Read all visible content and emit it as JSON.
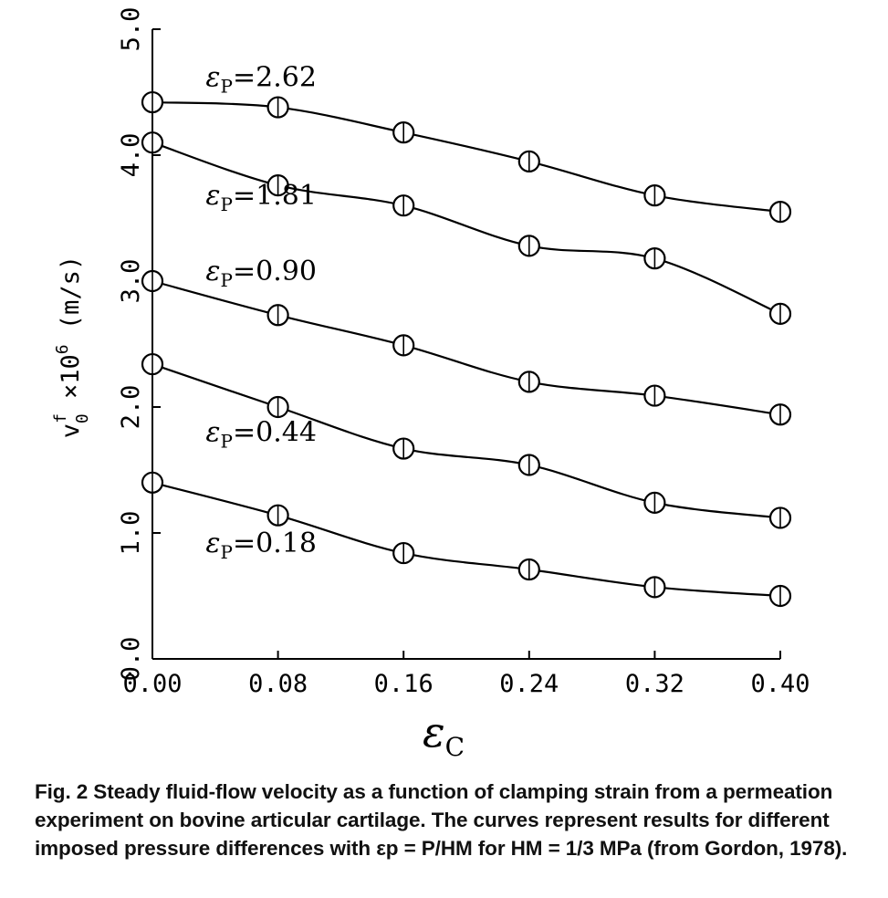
{
  "chart_data": {
    "type": "line",
    "x": [
      0.0,
      0.08,
      0.16,
      0.24,
      0.32,
      0.4
    ],
    "x_tick_labels": [
      "0.00",
      "0.08",
      "0.16",
      "0.24",
      "0.32",
      "0.40"
    ],
    "y_tick_values": [
      0,
      1,
      2,
      3,
      4,
      5
    ],
    "y_tick_labels": [
      "0.0",
      "1.0",
      "2.0",
      "3.0",
      "4.0",
      "5.0"
    ],
    "xlim": [
      0,
      0.4
    ],
    "ylim": [
      0,
      5.0
    ],
    "xlabel": "ε",
    "xlabel_sub": "C",
    "ylabel": "v",
    "ylabel_sup": "f",
    "ylabel_sub": "0",
    "ylabel_rest": " ×10",
    "ylabel_exp": "6",
    "ylabel_units": " (m/s)",
    "grid": false,
    "series": [
      {
        "name": "εp=2.62",
        "label_prefix": "ε",
        "label_sub": "P",
        "label_value": "=2.62",
        "label_anchor": [
          0.02,
          4.62
        ],
        "values": [
          4.42,
          4.38,
          4.18,
          3.95,
          3.68,
          3.55
        ]
      },
      {
        "name": "εp=1.81",
        "label_prefix": "ε",
        "label_sub": "P",
        "label_value": "=1.81",
        "label_anchor": [
          0.02,
          3.68
        ],
        "values": [
          4.1,
          3.76,
          3.6,
          3.28,
          3.18,
          2.74
        ]
      },
      {
        "name": "εp=0.90",
        "label_prefix": "ε",
        "label_sub": "P",
        "label_value": "=0.90",
        "label_anchor": [
          0.02,
          3.08
        ],
        "values": [
          3.0,
          2.73,
          2.49,
          2.2,
          2.09,
          1.94
        ]
      },
      {
        "name": "εp=0.44",
        "label_prefix": "ε",
        "label_sub": "P",
        "label_value": "=0.44",
        "label_anchor": [
          0.02,
          1.8
        ],
        "values": [
          2.34,
          2.0,
          1.67,
          1.54,
          1.24,
          1.12
        ]
      },
      {
        "name": "εp=0.18",
        "label_prefix": "ε",
        "label_sub": "P",
        "label_value": "=0.18",
        "label_anchor": [
          0.02,
          0.92
        ],
        "values": [
          1.4,
          1.14,
          0.84,
          0.71,
          0.57,
          0.5
        ]
      }
    ],
    "marker": "circle-with-tick"
  },
  "caption": {
    "text": "Fig. 2    Steady fluid-flow velocity as a function of clamping strain from a permeation experiment on bovine articular cartilage. The curves represent results for different imposed pressure differences with εp = P/HM for HM = 1/3 MPa (from Gordon, 1978)."
  }
}
